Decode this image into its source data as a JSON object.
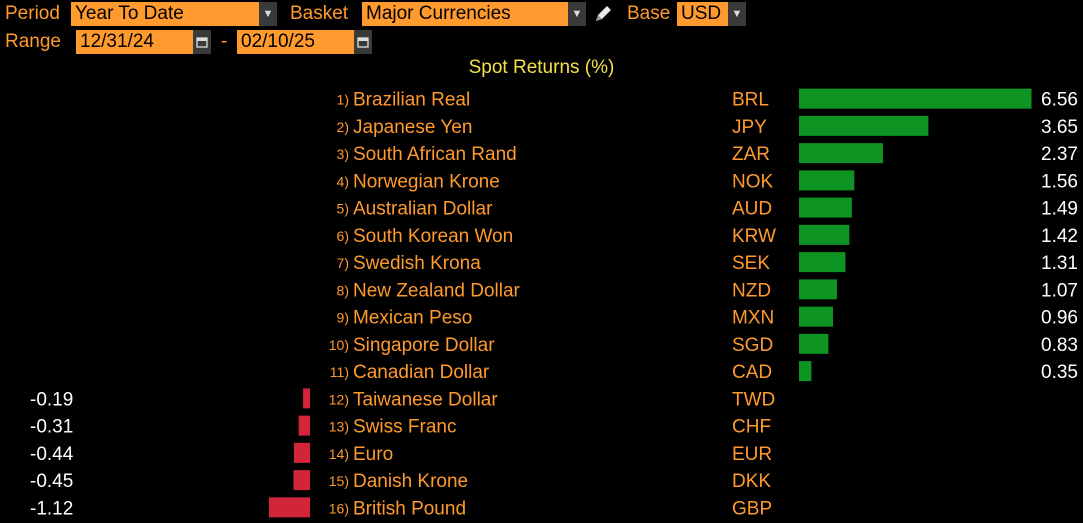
{
  "controls": {
    "period_label": "Period",
    "period_value": "Year To Date",
    "basket_label": "Basket",
    "basket_value": "Major Currencies",
    "base_label": "Base",
    "base_value": "USD",
    "range_label": "Range",
    "range_start": "12/31/24",
    "range_separator": "-",
    "range_end": "02/10/25"
  },
  "colors": {
    "positive_bar": "#0e9423",
    "negative_bar": "#d2253a",
    "label_text": "#ff9a2e",
    "value_text": "#ffffff",
    "title_text": "#f5e04a",
    "field_bg": "#ff9a2e"
  },
  "icons": {
    "dropdown": "chevron-down-icon",
    "edit": "pencil-icon",
    "calendar": "calendar-icon"
  },
  "chart_data": {
    "type": "bar",
    "title": "Spot Returns (%)",
    "orientation": "horizontal",
    "categories": [
      "Brazilian Real",
      "Japanese Yen",
      "South African Rand",
      "Norwegian Krone",
      "Australian Dollar",
      "South Korean Won",
      "Swedish Krona",
      "New Zealand Dollar",
      "Mexican Peso",
      "Singapore Dollar",
      "Canadian Dollar",
      "Taiwanese Dollar",
      "Swiss Franc",
      "Euro",
      "Danish Krone",
      "British Pound"
    ],
    "ranks": [
      "1)",
      "2)",
      "3)",
      "4)",
      "5)",
      "6)",
      "7)",
      "8)",
      "9)",
      "10)",
      "11)",
      "12)",
      "13)",
      "14)",
      "15)",
      "16)"
    ],
    "codes": [
      "BRL",
      "JPY",
      "ZAR",
      "NOK",
      "AUD",
      "KRW",
      "SEK",
      "NZD",
      "MXN",
      "SGD",
      "CAD",
      "TWD",
      "CHF",
      "EUR",
      "DKK",
      "GBP"
    ],
    "values": [
      6.56,
      3.65,
      2.37,
      1.56,
      1.49,
      1.42,
      1.31,
      1.07,
      0.96,
      0.83,
      0.35,
      -0.19,
      -0.31,
      -0.44,
      -0.45,
      -1.12
    ],
    "value_labels": [
      "6.56",
      "3.65",
      "2.37",
      "1.56",
      "1.49",
      "1.42",
      "1.31",
      "1.07",
      "0.96",
      "0.83",
      "0.35",
      "-0.19",
      "-0.31",
      "-0.44",
      "-0.45",
      "-1.12"
    ]
  }
}
